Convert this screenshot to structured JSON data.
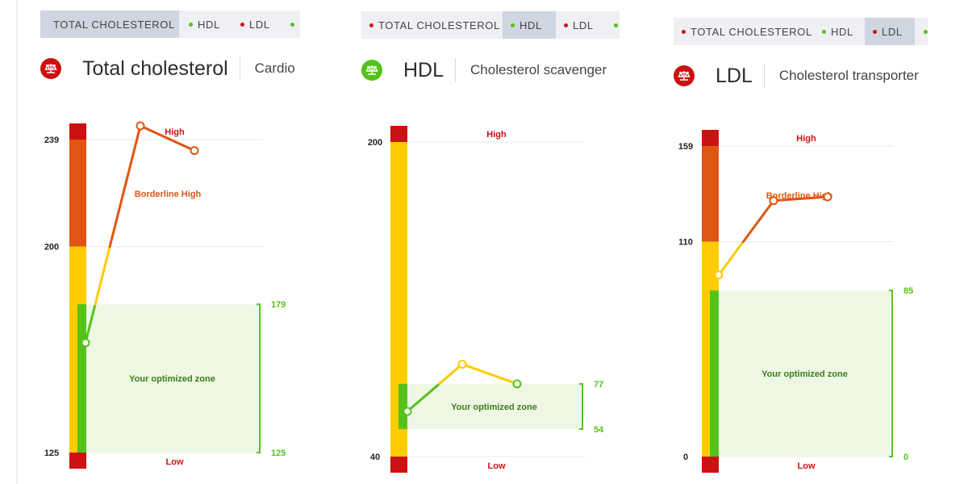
{
  "tabs": [
    "TOTAL CHOLESTEROL",
    "HDL",
    "LDL",
    ""
  ],
  "colors": {
    "red": "#cc1111",
    "orange": "#e05511",
    "yellow": "#ffcc00",
    "green": "#55c21b",
    "zone": "#eef7e4",
    "zone_text": "#3a7d1a",
    "gridline": "#e8e8e8",
    "tab_bg": "#eef0f3",
    "tab_active": "#cfd6e0"
  },
  "panels": [
    {
      "active_tab": 0,
      "title": "Total cholesterol",
      "subtitle": "Cardio",
      "badge_color": "#cc1111",
      "chart_data": {
        "type": "line",
        "y_ticks": [
          239,
          200,
          125
        ],
        "ylim": [
          115,
          263
        ],
        "band_labels": {
          "high": "High",
          "low": "Low",
          "borderline": "Borderline High"
        },
        "zone": {
          "label": "Your optimized zone",
          "min": 125,
          "max": 179
        },
        "series": [
          {
            "values": [
              165,
              244,
              235
            ]
          }
        ]
      }
    },
    {
      "active_tab": 1,
      "title": "HDL",
      "subtitle": "Cholesterol scavenger",
      "badge_color": "#55c21b",
      "chart_data": {
        "type": "line",
        "y_ticks": [
          200,
          40
        ],
        "ylim": [
          35,
          205
        ],
        "band_labels": {
          "high": "High",
          "low": "Low"
        },
        "zone": {
          "label": "Your optimized zone",
          "min": 54,
          "max": 77
        },
        "series": [
          {
            "values": [
              63,
              87,
              77
            ]
          }
        ]
      }
    },
    {
      "active_tab": 2,
      "title": "LDL",
      "subtitle": "Cholesterol transporter",
      "badge_color": "#cc1111",
      "chart_data": {
        "type": "line",
        "y_ticks": [
          159,
          110,
          0
        ],
        "ylim": [
          -5,
          165
        ],
        "band_labels": {
          "high": "High",
          "low": "Low",
          "borderline": "Borderline High"
        },
        "zone": {
          "label": "Your optimized zone",
          "min": 0,
          "max": 85
        },
        "series": [
          {
            "values": [
              93,
              131,
              133
            ]
          }
        ]
      }
    }
  ]
}
